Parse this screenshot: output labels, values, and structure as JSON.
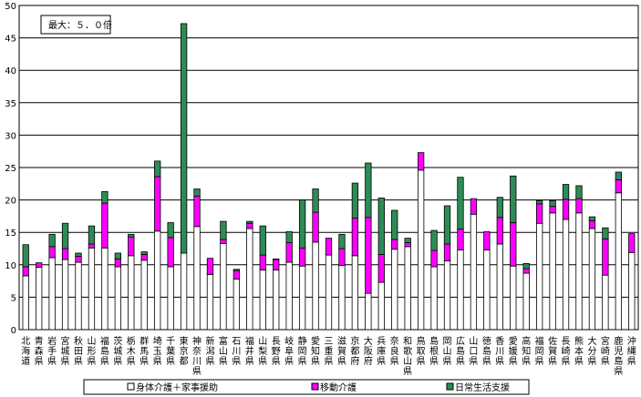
{
  "chart_data": {
    "type": "bar",
    "stacked": true,
    "note": "最大：５．０倍",
    "ylim": [
      0,
      50
    ],
    "yticks": [
      0,
      5,
      10,
      15,
      20,
      25,
      30,
      35,
      40,
      45,
      50
    ],
    "grid": "horizontal",
    "legend_position": "bottom",
    "categories": [
      "北海道",
      "青森県",
      "岩手県",
      "宮城県",
      "秋田県",
      "山形県",
      "福島県",
      "茨城県",
      "栃木県",
      "群馬県",
      "埼玉県",
      "千葉県",
      "東京都",
      "神奈川県",
      "新潟県",
      "富山県",
      "石川県",
      "福井県",
      "山梨県",
      "長野県",
      "岐阜県",
      "静岡県",
      "愛知県",
      "三重県",
      "滋賀県",
      "京都府",
      "大阪府",
      "兵庫県",
      "奈良県",
      "和歌山県",
      "鳥取県",
      "島根県",
      "岡山県",
      "広島県",
      "山口県",
      "徳島県",
      "香川県",
      "愛媛県",
      "高知県",
      "福岡県",
      "佐賀県",
      "長崎県",
      "熊本県",
      "大分県",
      "宮崎県",
      "鹿児島県",
      "沖縄県"
    ],
    "series": [
      {
        "name": "身体介護＋家事援助",
        "color": "#ffffff",
        "values": [
          8.3,
          9.6,
          11.1,
          10.8,
          10.4,
          12.6,
          12.6,
          9.7,
          11.4,
          10.7,
          15.2,
          9.7,
          11.8,
          15.9,
          8.5,
          13.3,
          7.8,
          15.6,
          9.2,
          9.2,
          10.4,
          9.8,
          13.5,
          11.5,
          9.9,
          11.4,
          5.6,
          7.3,
          12.4,
          12.8,
          24.6,
          9.7,
          10.6,
          12.3,
          17.8,
          12.3,
          13.2,
          9.8,
          8.7,
          16.4,
          18.0,
          17.0,
          18.0,
          15.6,
          8.4,
          21.1,
          11.9
        ]
      },
      {
        "name": "移動介護",
        "color": "#ff00ff",
        "values": [
          1.4,
          0.7,
          1.7,
          1.7,
          0.9,
          0.6,
          6.9,
          1.2,
          2.9,
          0.9,
          8.4,
          4.5,
          0.0,
          4.7,
          2.5,
          0.6,
          1.3,
          0.8,
          2.3,
          1.6,
          3.0,
          2.8,
          4.6,
          2.6,
          2.6,
          5.8,
          11.7,
          4.3,
          1.5,
          0.6,
          2.7,
          2.5,
          2.6,
          3.2,
          2.4,
          2.8,
          4.1,
          6.7,
          0.7,
          3.0,
          1.0,
          3.1,
          2.2,
          1.2,
          5.6,
          2.0,
          2.9
        ]
      },
      {
        "name": "日常生活支援",
        "color": "#2e8b57",
        "values": [
          3.4,
          0.0,
          1.9,
          3.9,
          0.5,
          2.8,
          1.8,
          0.9,
          0.4,
          0.4,
          2.4,
          2.3,
          35.4,
          1.1,
          0.0,
          2.8,
          0.2,
          0.3,
          4.5,
          0.1,
          1.7,
          7.4,
          3.6,
          0.0,
          2.2,
          5.4,
          8.4,
          8.7,
          4.5,
          0.7,
          0.0,
          3.1,
          5.9,
          8.0,
          0.0,
          0.0,
          3.1,
          7.2,
          0.8,
          0.5,
          0.9,
          2.3,
          2.0,
          0.6,
          1.7,
          1.2,
          0.0
        ]
      }
    ]
  }
}
